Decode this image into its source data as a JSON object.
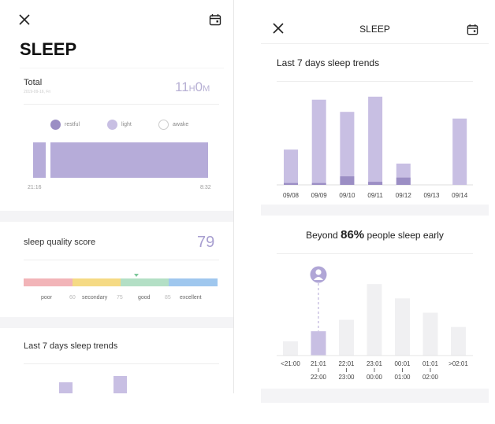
{
  "left": {
    "title": "SLEEP",
    "total": {
      "label": "Total",
      "date": "2019-09-16, Fri",
      "hours": "11",
      "h_unit": "H",
      "minutes": "0",
      "m_unit": "M"
    },
    "legend": [
      {
        "label": "restful",
        "color": "#9b8ec4"
      },
      {
        "label": "light",
        "color": "#c8bfe3"
      },
      {
        "label": "awake",
        "color": "#ffffff"
      }
    ],
    "timeline": {
      "start": "21:16",
      "end": "8:32"
    },
    "quality": {
      "label": "sleep quality score",
      "score": "79",
      "segments": [
        {
          "label": "poor",
          "color": "#f2b4b8"
        },
        {
          "label": "secondary",
          "color": "#f5da84"
        },
        {
          "label": "good",
          "color": "#b3dfc5"
        },
        {
          "label": "excellent",
          "color": "#9fc7ee"
        }
      ],
      "thresholds": [
        "60",
        "75",
        "85"
      ]
    },
    "trends_title": "Last 7 days sleep trends"
  },
  "right": {
    "title": "SLEEP",
    "trends_title": "Last 7 days sleep trends",
    "early": {
      "prefix": "Beyond",
      "percent": "86%",
      "suffix": "people sleep early"
    }
  },
  "colors": {
    "light": "#c8bfe3",
    "restful": "#9b8ec4",
    "gray_bar": "#f0f0f2",
    "score": "#9b8ec4"
  },
  "chart_data": [
    {
      "type": "bar",
      "title": "Last 7 days sleep trends",
      "categories": [
        "09/08",
        "09/09",
        "09/10",
        "09/11",
        "09/12",
        "09/13",
        "09/14"
      ],
      "series": [
        {
          "name": "light",
          "values": [
            5.5,
            13.7,
            10.6,
            14.0,
            2.3,
            0,
            10.9
          ]
        },
        {
          "name": "restful",
          "values": [
            0.3,
            0.3,
            1.4,
            0.5,
            1.2,
            0,
            0
          ]
        }
      ],
      "ylim": [
        0,
        15
      ],
      "stacked": true
    },
    {
      "type": "bar",
      "title": "Beyond 86% people sleep early",
      "categories": [
        "<21:00",
        "21:01|22:00",
        "22:01|23:00",
        "23:01|00:00",
        "00:01|01:00",
        "01:01|02:00",
        ">02:01"
      ],
      "values": [
        10,
        17,
        25,
        50,
        40,
        30,
        20
      ],
      "highlight_index": 1,
      "ylim": [
        0,
        60
      ]
    }
  ]
}
